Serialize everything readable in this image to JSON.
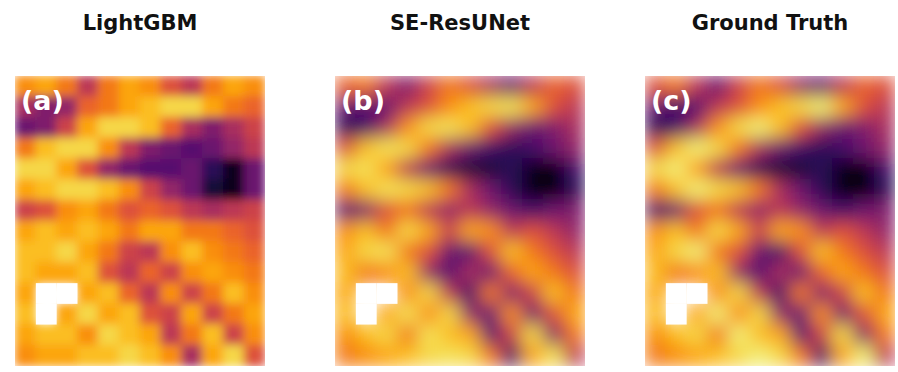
{
  "chart_data": [
    {
      "type": "heatmap",
      "title": "LightGBM",
      "annotation": "(a)",
      "color": "inferno",
      "zlim": [
        0,
        1
      ],
      "tick_labels": false,
      "cells": [
        [
          0.75,
          0.8,
          0.7,
          0.5,
          0.7,
          0.8,
          0.75,
          0.6,
          0.5,
          0.7,
          0.8,
          0.75
        ],
        [
          0.45,
          0.35,
          0.4,
          0.65,
          0.7,
          0.8,
          0.85,
          0.9,
          0.9,
          0.8,
          0.7,
          0.65
        ],
        [
          0.3,
          0.35,
          0.55,
          0.8,
          0.9,
          0.9,
          0.85,
          0.65,
          0.45,
          0.35,
          0.45,
          0.55
        ],
        [
          0.7,
          0.85,
          0.9,
          0.9,
          0.75,
          0.5,
          0.35,
          0.3,
          0.25,
          0.3,
          0.4,
          0.5
        ],
        [
          0.9,
          0.9,
          0.8,
          0.6,
          0.4,
          0.3,
          0.25,
          0.25,
          0.3,
          0.15,
          0.05,
          0.3
        ],
        [
          0.8,
          0.85,
          0.9,
          0.9,
          0.85,
          0.75,
          0.55,
          0.4,
          0.3,
          0.1,
          0.05,
          0.3
        ],
        [
          0.55,
          0.6,
          0.75,
          0.8,
          0.7,
          0.6,
          0.65,
          0.6,
          0.5,
          0.45,
          0.5,
          0.55
        ],
        [
          0.8,
          0.85,
          0.8,
          0.85,
          0.8,
          0.7,
          0.8,
          0.8,
          0.7,
          0.7,
          0.65,
          0.6
        ],
        [
          0.85,
          0.85,
          0.9,
          0.8,
          0.7,
          0.55,
          0.5,
          0.75,
          0.85,
          0.75,
          0.7,
          0.65
        ],
        [
          0.85,
          0.8,
          0.8,
          0.85,
          0.6,
          0.5,
          0.65,
          0.55,
          0.75,
          0.8,
          0.75,
          0.7
        ],
        [
          0.8,
          null,
          null,
          0.8,
          0.85,
          0.65,
          0.5,
          0.75,
          0.55,
          0.7,
          0.85,
          0.75
        ],
        [
          0.85,
          null,
          0.8,
          0.9,
          0.8,
          0.85,
          0.6,
          0.55,
          0.8,
          0.55,
          0.7,
          0.8
        ],
        [
          0.8,
          0.85,
          0.85,
          0.75,
          0.9,
          0.85,
          0.8,
          0.5,
          0.7,
          0.85,
          0.55,
          0.75
        ],
        [
          0.75,
          0.8,
          0.8,
          0.85,
          0.85,
          0.9,
          0.85,
          0.75,
          0.45,
          0.8,
          0.9,
          0.6
        ]
      ]
    },
    {
      "type": "heatmap",
      "title": "SE-ResUNet",
      "annotation": "(b)",
      "color": "inferno",
      "zlim": [
        0,
        1
      ],
      "tick_labels": false,
      "cells": [
        [
          0.65,
          0.7,
          0.5,
          0.35,
          0.55,
          0.7,
          0.6,
          0.45,
          0.3,
          0.5,
          0.65,
          0.6
        ],
        [
          0.3,
          0.25,
          0.3,
          0.5,
          0.6,
          0.75,
          0.85,
          0.9,
          0.92,
          0.8,
          0.6,
          0.5
        ],
        [
          0.15,
          0.2,
          0.45,
          0.75,
          0.9,
          0.92,
          0.85,
          0.6,
          0.4,
          0.3,
          0.35,
          0.45
        ],
        [
          0.6,
          0.85,
          0.92,
          0.9,
          0.7,
          0.45,
          0.3,
          0.2,
          0.15,
          0.2,
          0.3,
          0.4
        ],
        [
          0.9,
          0.92,
          0.8,
          0.5,
          0.3,
          0.15,
          0.1,
          0.1,
          0.15,
          0.05,
          0.02,
          0.2
        ],
        [
          0.7,
          0.85,
          0.92,
          0.9,
          0.85,
          0.7,
          0.45,
          0.3,
          0.15,
          0.03,
          0.0,
          0.15
        ],
        [
          0.25,
          0.35,
          0.6,
          0.7,
          0.5,
          0.4,
          0.5,
          0.4,
          0.3,
          0.2,
          0.3,
          0.35
        ],
        [
          0.75,
          0.85,
          0.7,
          0.9,
          0.8,
          0.55,
          0.8,
          0.75,
          0.5,
          0.6,
          0.5,
          0.4
        ],
        [
          0.8,
          0.9,
          0.92,
          0.7,
          0.6,
          0.3,
          0.25,
          0.6,
          0.85,
          0.7,
          0.6,
          0.5
        ],
        [
          0.85,
          0.7,
          0.75,
          0.85,
          0.4,
          0.25,
          0.45,
          0.3,
          0.65,
          0.8,
          0.7,
          0.6
        ],
        [
          0.8,
          null,
          null,
          0.75,
          0.9,
          0.5,
          0.2,
          0.7,
          0.35,
          0.55,
          0.85,
          0.7
        ],
        [
          0.85,
          null,
          0.8,
          0.92,
          0.75,
          0.9,
          0.4,
          0.3,
          0.75,
          0.3,
          0.6,
          0.8
        ],
        [
          0.75,
          0.85,
          0.9,
          0.7,
          0.92,
          0.85,
          0.8,
          0.25,
          0.55,
          0.9,
          0.35,
          0.7
        ],
        [
          0.7,
          0.75,
          0.8,
          0.85,
          0.9,
          0.92,
          0.9,
          0.7,
          0.2,
          0.8,
          0.92,
          0.5
        ]
      ]
    },
    {
      "type": "heatmap",
      "title": "Ground Truth",
      "annotation": "(c)",
      "color": "inferno",
      "zlim": [
        0,
        1
      ],
      "tick_labels": false,
      "cells": [
        [
          0.6,
          0.7,
          0.5,
          0.3,
          0.55,
          0.7,
          0.6,
          0.4,
          0.3,
          0.5,
          0.65,
          0.6
        ],
        [
          0.3,
          0.2,
          0.25,
          0.5,
          0.6,
          0.75,
          0.85,
          0.9,
          0.95,
          0.8,
          0.6,
          0.5
        ],
        [
          0.15,
          0.2,
          0.45,
          0.75,
          0.9,
          0.95,
          0.85,
          0.6,
          0.4,
          0.3,
          0.35,
          0.45
        ],
        [
          0.6,
          0.85,
          0.95,
          0.9,
          0.7,
          0.45,
          0.3,
          0.2,
          0.15,
          0.2,
          0.3,
          0.4
        ],
        [
          0.9,
          0.95,
          0.8,
          0.5,
          0.3,
          0.15,
          0.1,
          0.1,
          0.15,
          0.05,
          0.02,
          0.2
        ],
        [
          0.7,
          0.85,
          0.95,
          0.9,
          0.85,
          0.7,
          0.45,
          0.3,
          0.15,
          0.02,
          0.0,
          0.15
        ],
        [
          0.2,
          0.3,
          0.6,
          0.7,
          0.5,
          0.4,
          0.5,
          0.4,
          0.3,
          0.2,
          0.3,
          0.35
        ],
        [
          0.75,
          0.85,
          0.7,
          0.9,
          0.8,
          0.55,
          0.8,
          0.75,
          0.5,
          0.6,
          0.5,
          0.4
        ],
        [
          0.8,
          0.9,
          0.95,
          0.7,
          0.6,
          0.3,
          0.2,
          0.6,
          0.85,
          0.7,
          0.6,
          0.5
        ],
        [
          0.85,
          0.7,
          0.75,
          0.85,
          0.4,
          0.25,
          0.45,
          0.3,
          0.65,
          0.8,
          0.7,
          0.6
        ],
        [
          0.8,
          null,
          null,
          0.75,
          0.9,
          0.5,
          0.2,
          0.7,
          0.35,
          0.55,
          0.85,
          0.7
        ],
        [
          0.85,
          null,
          0.8,
          0.95,
          0.75,
          0.9,
          0.4,
          0.3,
          0.75,
          0.3,
          0.6,
          0.8
        ],
        [
          0.75,
          0.85,
          0.9,
          0.7,
          0.95,
          0.85,
          0.8,
          0.25,
          0.55,
          0.9,
          0.35,
          0.7
        ],
        [
          0.7,
          0.75,
          0.8,
          0.85,
          0.9,
          0.95,
          0.9,
          0.7,
          0.2,
          0.8,
          0.95,
          0.5
        ]
      ]
    }
  ]
}
